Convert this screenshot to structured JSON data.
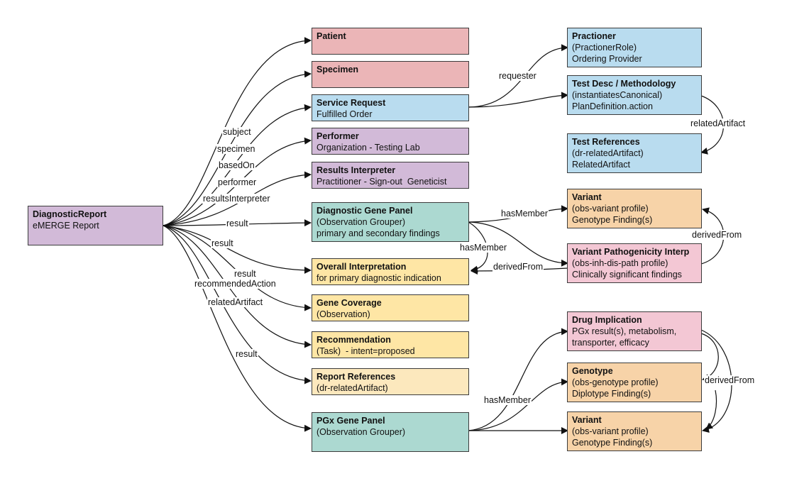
{
  "nodes": {
    "diagnostic_report": {
      "title": "DiagnosticReport",
      "lines": [
        "eMERGE Report"
      ]
    },
    "patient": {
      "title": "Patient",
      "lines": []
    },
    "specimen": {
      "title": "Specimen",
      "lines": []
    },
    "service_request": {
      "title": "Service Request",
      "lines": [
        "Fulfilled Order"
      ]
    },
    "performer": {
      "title": "Performer",
      "lines": [
        "Organization - Testing Lab"
      ]
    },
    "results_interpreter": {
      "title": "Results Interpreter",
      "lines": [
        "Practitioner - Sign-out  Geneticist"
      ]
    },
    "diagnostic_gene_panel": {
      "title": "Diagnostic Gene Panel",
      "lines": [
        "(Observation Grouper)",
        "primary and secondary findings"
      ]
    },
    "overall_interpretation": {
      "title": "Overall Interpretation",
      "lines": [
        "for primary diagnostic indication"
      ]
    },
    "gene_coverage": {
      "title": "Gene Coverage",
      "lines": [
        "(Observation)"
      ]
    },
    "recommendation": {
      "title": "Recommendation",
      "lines": [
        "(Task)  - intent=proposed"
      ]
    },
    "report_references": {
      "title": "Report References",
      "lines": [
        "(dr-relatedArtifact)"
      ]
    },
    "pgx_gene_panel": {
      "title": "PGx Gene Panel",
      "lines": [
        "(Observation Grouper)"
      ]
    },
    "practioner": {
      "title": "Practioner",
      "lines": [
        "(PractionerRole)",
        "Ordering Provider"
      ]
    },
    "test_desc": {
      "title": "Test Desc / Methodology",
      "lines": [
        "(instantiatesCanonical)",
        "PlanDefinition.action"
      ]
    },
    "test_references": {
      "title": "Test References",
      "lines": [
        "(dr-relatedArtifact)",
        "RelatedArtifact"
      ]
    },
    "variant_1": {
      "title": "Variant",
      "lines": [
        "(obs-variant profile)",
        "Genotype Finding(s)"
      ]
    },
    "variant_pathogenicity": {
      "title": "Variant Pathogenicity Interp",
      "lines": [
        "(obs-inh-dis-path profile)",
        "Clinically significant findings"
      ]
    },
    "drug_implication": {
      "title": "Drug Implication",
      "lines": [
        "PGx result(s), metabolism,",
        "transporter, efficacy"
      ]
    },
    "genotype": {
      "title": "Genotype",
      "lines": [
        "(obs-genotype profile)",
        "Diplotype Finding(s)"
      ]
    },
    "variant_2": {
      "title": "Variant",
      "lines": [
        "(obs-variant profile)",
        "Genotype Finding(s)"
      ]
    }
  },
  "edge_labels": {
    "subject": "subject",
    "specimen": "specimen",
    "basedOn": "basedOn",
    "performer": "performer",
    "resultsInterpreter": "resultsInterpreter",
    "result_1": "result",
    "result_2": "result",
    "result_3": "result",
    "recommendedAction": "recommendedAction",
    "relatedArtifact_left": "relatedArtifact",
    "result_4": "result",
    "requester": "requester",
    "relatedArtifact_right": "relatedArtifact",
    "hasMember_1": "hasMember",
    "hasMember_2": "hasMember",
    "derivedFrom_1": "derivedFrom",
    "derivedFrom_2": "derivedFrom",
    "hasMember_3": "hasMember",
    "derivedFrom_3": "derivedFrom"
  },
  "colors": {
    "red": "#ebb5b7",
    "blue": "#b9dcef",
    "purple": "#d2bad8",
    "teal": "#acd9d1",
    "yellow": "#fee6a5",
    "cream": "#fce8bd",
    "orange": "#f7d3a8",
    "pink": "#f3c7d4",
    "edge": "#111111"
  }
}
